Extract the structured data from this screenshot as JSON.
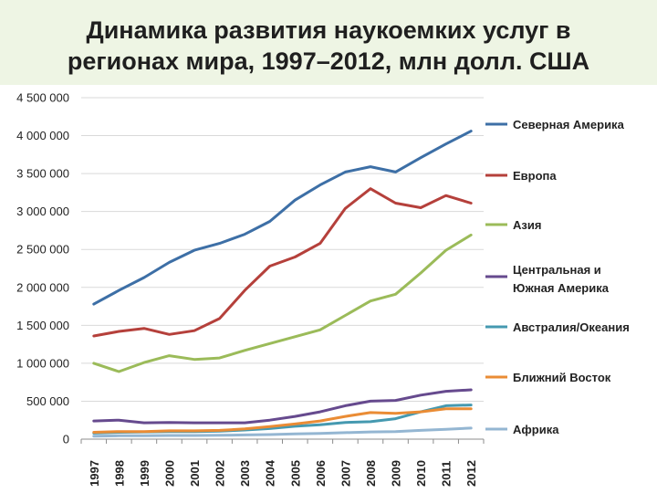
{
  "header": {
    "title_line1": "Динамика развития наукоемких услуг в",
    "title_line2": "регионах  мира, 1997–2012, млн долл. США"
  },
  "chart_data": {
    "type": "line",
    "title": "Динамика развития наукоемких услуг в регионах мира, 1997–2012, млн долл. США",
    "xlabel": "",
    "ylabel": "",
    "ylim": [
      0,
      4500000
    ],
    "grid": true,
    "legend_position": "right",
    "yticks": [
      {
        "value": 0,
        "label": "0"
      },
      {
        "value": 500000,
        "label": "500 000"
      },
      {
        "value": 1000000,
        "label": "1 000 000"
      },
      {
        "value": 1500000,
        "label": "1 500 000"
      },
      {
        "value": 2000000,
        "label": "2 000 000"
      },
      {
        "value": 2500000,
        "label": "2 500 000"
      },
      {
        "value": 3000000,
        "label": "3 000 000"
      },
      {
        "value": 3500000,
        "label": "3 500 000"
      },
      {
        "value": 4000000,
        "label": "4 000 000"
      },
      {
        "value": 4500000,
        "label": "4 500 000"
      }
    ],
    "categories": [
      "1997",
      "1998",
      "1999",
      "2000",
      "2001",
      "2002",
      "2003",
      "2004",
      "2005",
      "2006",
      "2007",
      "2008",
      "2009",
      "2010",
      "2011",
      "2012"
    ],
    "series": [
      {
        "name": "Северная Америка",
        "color": "#3d6fa6",
        "values": [
          1780000,
          1960000,
          2130000,
          2330000,
          2490000,
          2580000,
          2700000,
          2870000,
          3150000,
          3350000,
          3520000,
          3590000,
          3520000,
          3710000,
          3890000,
          4060000
        ]
      },
      {
        "name": "Европа",
        "color": "#b5403b",
        "values": [
          1360000,
          1420000,
          1460000,
          1380000,
          1430000,
          1590000,
          1960000,
          2280000,
          2400000,
          2580000,
          3040000,
          3300000,
          3110000,
          3050000,
          3210000,
          3110000
        ]
      },
      {
        "name": "Азия",
        "color": "#9bbb59",
        "values": [
          1000000,
          890000,
          1010000,
          1100000,
          1050000,
          1070000,
          1170000,
          1260000,
          1350000,
          1440000,
          1630000,
          1820000,
          1910000,
          2190000,
          2490000,
          2690000
        ]
      },
      {
        "name": "Центральная и Южная Америка",
        "color": "#664a8e",
        "values": [
          240000,
          250000,
          215000,
          220000,
          215000,
          215000,
          215000,
          250000,
          300000,
          360000,
          440000,
          500000,
          510000,
          580000,
          630000,
          650000
        ]
      },
      {
        "name": "Австралия/Океания",
        "color": "#4599b0",
        "values": [
          80000,
          90000,
          95000,
          100000,
          100000,
          105000,
          120000,
          140000,
          170000,
          190000,
          220000,
          230000,
          270000,
          360000,
          440000,
          450000
        ]
      },
      {
        "name": "Ближний Восток",
        "color": "#ea8c35",
        "values": [
          90000,
          100000,
          100000,
          110000,
          110000,
          115000,
          135000,
          165000,
          200000,
          240000,
          300000,
          350000,
          340000,
          360000,
          400000,
          400000
        ]
      },
      {
        "name": "Африка",
        "color": "#94b6d2",
        "values": [
          40000,
          45000,
          45000,
          48000,
          48000,
          50000,
          55000,
          60000,
          68000,
          75000,
          85000,
          95000,
          100000,
          115000,
          130000,
          145000
        ]
      }
    ]
  }
}
